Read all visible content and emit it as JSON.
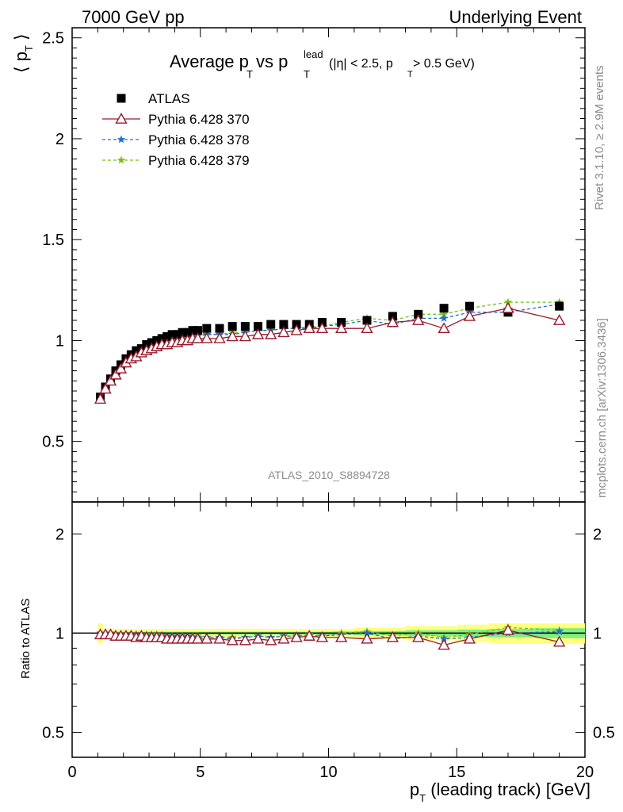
{
  "header": {
    "left": "7000 GeV pp",
    "right": "Underlying Event"
  },
  "title": {
    "main": "Average p",
    "main_sub": "T",
    "vs": " vs p",
    "vs_sup": "lead",
    "vs_sub": "T",
    "cuts_a": "(|η| < 2.5, p",
    "cuts_sub": "T",
    "cuts_b": " > 0.5 GeV)"
  },
  "side_labels": {
    "rivet": "Rivet 3.1.10, ≥ 2.9M events",
    "mcplots": "mcplots.cern.ch [arXiv:1306.3436]"
  },
  "analysis_id": "ATLAS_2010_S8894728",
  "axes": {
    "ylabel_main": "⟨ p",
    "ylabel_main_sub": "T",
    "ylabel_main_end": " ⟩",
    "ylabel_ratio": "Ratio to ATLAS",
    "xlabel": "p",
    "xlabel_sub": "T",
    "xlabel_rest": " (leading track) [GeV]"
  },
  "colors": {
    "atlas": "#000000",
    "p370": "#9a1b2e",
    "p378": "#1f6fd8",
    "p379": "#7cbf1a",
    "band_yellow": "#ffff80",
    "band_green": "#80f080"
  },
  "chart_data": [
    {
      "type": "scatter",
      "xlim": [
        0,
        20
      ],
      "ylim": [
        0.2,
        2.55
      ],
      "yticks": [
        0.5,
        1,
        1.5,
        2,
        2.5
      ],
      "ytick_labels": [
        "0.5",
        "1",
        "1.5",
        "2",
        "2.5"
      ],
      "x": [
        1.1,
        1.3,
        1.5,
        1.7,
        1.9,
        2.1,
        2.3,
        2.5,
        2.7,
        2.9,
        3.1,
        3.3,
        3.5,
        3.7,
        3.9,
        4.1,
        4.3,
        4.5,
        4.7,
        4.9,
        5.25,
        5.75,
        6.25,
        6.75,
        7.25,
        7.75,
        8.25,
        8.75,
        9.25,
        9.75,
        10.5,
        11.5,
        12.5,
        13.5,
        14.5,
        15.5,
        17.0,
        19.0
      ],
      "legend": [
        {
          "name": "ATLAS",
          "marker": "square"
        },
        {
          "name": "Pythia 6.428 370",
          "marker": "triangle-open"
        },
        {
          "name": "Pythia 6.428 378",
          "marker": "star"
        },
        {
          "name": "Pythia 6.428 379",
          "marker": "star"
        }
      ],
      "series": [
        {
          "name": "ATLAS",
          "values": [
            0.72,
            0.77,
            0.81,
            0.85,
            0.88,
            0.91,
            0.93,
            0.95,
            0.96,
            0.98,
            0.99,
            1.0,
            1.01,
            1.02,
            1.03,
            1.03,
            1.04,
            1.04,
            1.05,
            1.05,
            1.06,
            1.06,
            1.07,
            1.07,
            1.07,
            1.08,
            1.08,
            1.08,
            1.08,
            1.09,
            1.09,
            1.1,
            1.12,
            1.13,
            1.16,
            1.17,
            1.14,
            1.17
          ]
        },
        {
          "name": "Pythia 6.428 370",
          "values": [
            0.71,
            0.76,
            0.8,
            0.83,
            0.86,
            0.89,
            0.91,
            0.92,
            0.94,
            0.95,
            0.96,
            0.97,
            0.98,
            0.98,
            0.99,
            0.99,
            1.0,
            1.0,
            1.01,
            1.01,
            1.01,
            1.01,
            1.02,
            1.02,
            1.03,
            1.03,
            1.04,
            1.05,
            1.06,
            1.06,
            1.06,
            1.06,
            1.09,
            1.1,
            1.06,
            1.12,
            1.16,
            1.1
          ]
        },
        {
          "name": "Pythia 6.428 378",
          "values": [
            0.72,
            0.77,
            0.81,
            0.84,
            0.87,
            0.9,
            0.92,
            0.94,
            0.95,
            0.96,
            0.97,
            0.98,
            0.99,
            1.0,
            1.0,
            1.01,
            1.01,
            1.02,
            1.02,
            1.02,
            1.03,
            1.03,
            1.03,
            1.04,
            1.05,
            1.05,
            1.06,
            1.06,
            1.06,
            1.07,
            1.08,
            1.1,
            1.08,
            1.11,
            1.11,
            1.14,
            1.14,
            1.18
          ]
        },
        {
          "name": "Pythia 6.428 379",
          "values": [
            0.72,
            0.77,
            0.81,
            0.84,
            0.87,
            0.9,
            0.92,
            0.94,
            0.95,
            0.97,
            0.98,
            0.99,
            0.99,
            1.0,
            1.01,
            1.01,
            1.02,
            1.02,
            1.03,
            1.03,
            1.03,
            1.03,
            1.04,
            1.04,
            1.05,
            1.05,
            1.06,
            1.06,
            1.07,
            1.07,
            1.09,
            1.11,
            1.1,
            1.13,
            1.13,
            1.16,
            1.19,
            1.19
          ]
        }
      ]
    },
    {
      "type": "scatter",
      "xlim": [
        0,
        20
      ],
      "ylim": [
        0.42,
        2.5
      ],
      "log_y": true,
      "yticks": [
        0.5,
        1,
        2
      ],
      "ytick_labels": [
        "0.5",
        "1",
        "2"
      ],
      "xticks": [
        0,
        5,
        10,
        15,
        20
      ],
      "xtick_labels": [
        "0",
        "5",
        "10",
        "15",
        "20"
      ],
      "x": [
        1.1,
        1.3,
        1.5,
        1.7,
        1.9,
        2.1,
        2.3,
        2.5,
        2.7,
        2.9,
        3.1,
        3.3,
        3.5,
        3.7,
        3.9,
        4.1,
        4.3,
        4.5,
        4.7,
        4.9,
        5.25,
        5.75,
        6.25,
        6.75,
        7.25,
        7.75,
        8.25,
        8.75,
        9.25,
        9.75,
        10.5,
        11.5,
        12.5,
        13.5,
        14.5,
        15.5,
        17.0,
        19.0
      ],
      "bands": {
        "yellow_half_width": [
          0.07,
          0.03,
          0.03,
          0.03,
          0.03,
          0.03,
          0.03,
          0.03,
          0.03,
          0.03,
          0.03,
          0.03,
          0.03,
          0.03,
          0.03,
          0.03,
          0.03,
          0.03,
          0.03,
          0.03,
          0.03,
          0.03,
          0.03,
          0.03,
          0.03,
          0.03,
          0.03,
          0.03,
          0.03,
          0.03,
          0.03,
          0.04,
          0.04,
          0.05,
          0.05,
          0.06,
          0.07,
          0.07
        ],
        "green_half_width": [
          0.015,
          0.01,
          0.01,
          0.01,
          0.01,
          0.01,
          0.01,
          0.01,
          0.01,
          0.01,
          0.01,
          0.01,
          0.01,
          0.01,
          0.01,
          0.01,
          0.01,
          0.01,
          0.01,
          0.01,
          0.01,
          0.01,
          0.01,
          0.01,
          0.01,
          0.01,
          0.01,
          0.01,
          0.01,
          0.01,
          0.012,
          0.015,
          0.015,
          0.02,
          0.02,
          0.025,
          0.03,
          0.035
        ]
      },
      "series": [
        {
          "name": "Pythia 6.428 370",
          "values": [
            0.99,
            0.99,
            0.99,
            0.98,
            0.98,
            0.98,
            0.98,
            0.97,
            0.98,
            0.97,
            0.97,
            0.97,
            0.97,
            0.96,
            0.96,
            0.96,
            0.96,
            0.96,
            0.96,
            0.96,
            0.96,
            0.96,
            0.95,
            0.95,
            0.96,
            0.95,
            0.96,
            0.97,
            0.98,
            0.97,
            0.97,
            0.96,
            0.97,
            0.97,
            0.92,
            0.96,
            1.02,
            0.94
          ]
        },
        {
          "name": "Pythia 6.428 378",
          "values": [
            1.0,
            1.0,
            1.0,
            0.99,
            0.99,
            0.99,
            0.99,
            0.99,
            0.99,
            0.98,
            0.98,
            0.98,
            0.98,
            0.98,
            0.97,
            0.98,
            0.97,
            0.98,
            0.97,
            0.97,
            0.97,
            0.97,
            0.96,
            0.97,
            0.98,
            0.97,
            0.98,
            0.98,
            0.98,
            0.98,
            0.99,
            1.0,
            0.96,
            0.98,
            0.96,
            0.97,
            1.0,
            1.01
          ]
        },
        {
          "name": "Pythia 6.428 379",
          "values": [
            1.0,
            1.0,
            1.0,
            0.99,
            0.99,
            0.99,
            0.99,
            0.99,
            0.99,
            0.99,
            0.99,
            0.99,
            0.98,
            0.98,
            0.98,
            0.98,
            0.98,
            0.98,
            0.98,
            0.98,
            0.97,
            0.97,
            0.97,
            0.97,
            0.98,
            0.97,
            0.98,
            0.98,
            0.99,
            0.98,
            1.0,
            1.01,
            0.98,
            1.0,
            0.97,
            0.99,
            1.04,
            1.02
          ]
        }
      ]
    }
  ]
}
